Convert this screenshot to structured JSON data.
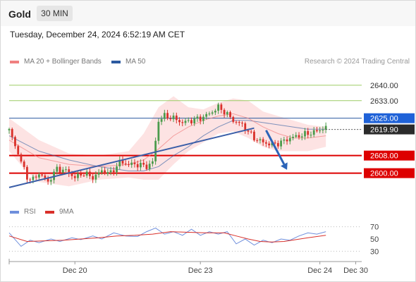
{
  "header": {
    "symbol": "Gold",
    "timeframe": "30 MIN",
    "datetime": "Tuesday, December 24, 2024 6:52:19 AM CET"
  },
  "legend": {
    "ma20": "MA 20 + Bollinger Bands",
    "ma50": "MA 50",
    "rsi": "RSI",
    "rsi_ma": "9MA"
  },
  "credit": "Research © 2024 Trading Central",
  "colors": {
    "ma20": "#f08080",
    "ma50": "#2c5aa0",
    "bands_fill": "#fde3e3",
    "bullish": "#4c9b4c",
    "bearish": "#d9302a",
    "resistance": "#9ccc65",
    "pivot": "#2c5aa0",
    "support": "#dd0000",
    "rsi": "#6f8fdc",
    "rsi_ma": "#d9302a"
  },
  "chart_data": [
    {
      "type": "candlestick",
      "title": "Gold",
      "timeframe": "30 MIN",
      "ylim": [
        2588,
        2648
      ],
      "x_tick_labels": [
        "Dec 20",
        "Dec 23",
        "Dec 24",
        "Dec 30"
      ],
      "current_price": "2619.90",
      "levels": [
        {
          "label": "2640.00",
          "value": 2640.0,
          "kind": "resistance"
        },
        {
          "label": "2633.00",
          "value": 2633.0,
          "kind": "resistance"
        },
        {
          "label": "2625.00",
          "value": 2625.0,
          "kind": "pivot"
        },
        {
          "label": "2608.00",
          "value": 2608.0,
          "kind": "support"
        },
        {
          "label": "2600.00",
          "value": 2600.0,
          "kind": "support"
        }
      ],
      "trendline": {
        "from": [
          0,
          2593.5
        ],
        "to": [
          82,
          2620.5
        ]
      },
      "forecast_arrow": {
        "from": [
          86,
          2619.5
        ],
        "to": [
          93,
          2601.5
        ]
      },
      "price_path": [
        [
          0,
          2619.5
        ],
        [
          3,
          2609
        ],
        [
          6,
          2598
        ],
        [
          8,
          2597
        ],
        [
          10,
          2600
        ],
        [
          13,
          2596
        ],
        [
          16,
          2602
        ],
        [
          19,
          2601
        ],
        [
          22,
          2598
        ],
        [
          25,
          2600
        ],
        [
          28,
          2598
        ],
        [
          31,
          2601
        ],
        [
          34,
          2600
        ],
        [
          37,
          2605
        ],
        [
          40,
          2604
        ],
        [
          43,
          2604
        ],
        [
          46,
          2603
        ],
        [
          48,
          2605
        ],
        [
          50,
          2624
        ],
        [
          52,
          2626
        ],
        [
          55,
          2625
        ],
        [
          58,
          2623
        ],
        [
          61,
          2624
        ],
        [
          64,
          2625
        ],
        [
          67,
          2627
        ],
        [
          70,
          2630
        ],
        [
          72,
          2628
        ],
        [
          75,
          2624
        ],
        [
          78,
          2622
        ],
        [
          80,
          2619
        ],
        [
          82,
          2616
        ],
        [
          85,
          2614
        ],
        [
          88,
          2613
        ],
        [
          91,
          2614
        ],
        [
          94,
          2616
        ],
        [
          97,
          2617
        ],
        [
          100,
          2618
        ],
        [
          103,
          2619
        ],
        [
          106,
          2621
        ]
      ],
      "ma20_path": [
        [
          0,
          2615
        ],
        [
          10,
          2607
        ],
        [
          20,
          2604
        ],
        [
          30,
          2603
        ],
        [
          40,
          2604
        ],
        [
          45,
          2606
        ],
        [
          50,
          2611
        ],
        [
          55,
          2617
        ],
        [
          60,
          2621
        ],
        [
          65,
          2624
        ],
        [
          70,
          2626
        ],
        [
          75,
          2627
        ],
        [
          80,
          2625
        ],
        [
          85,
          2621
        ],
        [
          90,
          2618
        ],
        [
          95,
          2616
        ],
        [
          100,
          2616
        ],
        [
          106,
          2617
        ]
      ],
      "ma50_path": [
        [
          0,
          2617
        ],
        [
          10,
          2610
        ],
        [
          20,
          2606
        ],
        [
          30,
          2603
        ],
        [
          40,
          2601
        ],
        [
          45,
          2601
        ],
        [
          50,
          2603
        ],
        [
          55,
          2608
        ],
        [
          60,
          2612
        ],
        [
          65,
          2617
        ],
        [
          70,
          2621
        ],
        [
          75,
          2624
        ],
        [
          80,
          2624
        ],
        [
          85,
          2623
        ],
        [
          90,
          2622
        ],
        [
          95,
          2621
        ],
        [
          100,
          2620
        ],
        [
          106,
          2620
        ]
      ],
      "upper_band": [
        [
          0,
          2625
        ],
        [
          5,
          2620
        ],
        [
          10,
          2615
        ],
        [
          20,
          2609
        ],
        [
          30,
          2608
        ],
        [
          40,
          2610
        ],
        [
          45,
          2618
        ],
        [
          50,
          2630
        ],
        [
          55,
          2635
        ],
        [
          60,
          2630
        ],
        [
          65,
          2629
        ],
        [
          70,
          2632
        ],
        [
          75,
          2634
        ],
        [
          80,
          2633
        ],
        [
          85,
          2628
        ],
        [
          90,
          2626
        ],
        [
          95,
          2624
        ],
        [
          100,
          2622
        ],
        [
          106,
          2621
        ]
      ],
      "lower_band": [
        [
          0,
          2610
        ],
        [
          5,
          2602
        ],
        [
          10,
          2596
        ],
        [
          20,
          2594
        ],
        [
          30,
          2597
        ],
        [
          40,
          2598
        ],
        [
          45,
          2597
        ],
        [
          50,
          2597
        ],
        [
          55,
          2604
        ],
        [
          60,
          2610
        ],
        [
          65,
          2614
        ],
        [
          70,
          2618
        ],
        [
          75,
          2619
        ],
        [
          80,
          2616
        ],
        [
          85,
          2612
        ],
        [
          90,
          2610
        ],
        [
          95,
          2610
        ],
        [
          100,
          2610
        ],
        [
          106,
          2612
        ]
      ]
    },
    {
      "type": "line",
      "title": "RSI",
      "ylim": [
        20,
        80
      ],
      "y_tick_labels": [
        "70",
        "50",
        "30"
      ],
      "y_ticks": [
        70,
        50,
        30
      ],
      "series": [
        {
          "name": "RSI",
          "color": "#6f8fdc",
          "points": [
            [
              0,
              60
            ],
            [
              4,
              38
            ],
            [
              7,
              48
            ],
            [
              10,
              44
            ],
            [
              14,
              50
            ],
            [
              17,
              46
            ],
            [
              21,
              52
            ],
            [
              24,
              49
            ],
            [
              28,
              55
            ],
            [
              31,
              50
            ],
            [
              35,
              60
            ],
            [
              39,
              55
            ],
            [
              43,
              54
            ],
            [
              46,
              62
            ],
            [
              49,
              68
            ],
            [
              52,
              58
            ],
            [
              55,
              62
            ],
            [
              58,
              56
            ],
            [
              61,
              66
            ],
            [
              64,
              56
            ],
            [
              67,
              62
            ],
            [
              70,
              58
            ],
            [
              73,
              62
            ],
            [
              76,
              42
            ],
            [
              79,
              50
            ],
            [
              82,
              40
            ],
            [
              85,
              48
            ],
            [
              88,
              44
            ],
            [
              91,
              50
            ],
            [
              94,
              48
            ],
            [
              97,
              55
            ],
            [
              100,
              60
            ],
            [
              103,
              58
            ],
            [
              106,
              62
            ]
          ]
        },
        {
          "name": "9MA",
          "color": "#d9302a",
          "points": [
            [
              0,
              55
            ],
            [
              6,
              46
            ],
            [
              12,
              47
            ],
            [
              18,
              48
            ],
            [
              24,
              50
            ],
            [
              30,
              52
            ],
            [
              36,
              55
            ],
            [
              42,
              56
            ],
            [
              48,
              58
            ],
            [
              54,
              62
            ],
            [
              60,
              61
            ],
            [
              66,
              60
            ],
            [
              72,
              60
            ],
            [
              76,
              55
            ],
            [
              80,
              50
            ],
            [
              84,
              46
            ],
            [
              88,
              45
            ],
            [
              92,
              46
            ],
            [
              96,
              49
            ],
            [
              100,
              52
            ],
            [
              106,
              56
            ]
          ]
        }
      ]
    }
  ]
}
